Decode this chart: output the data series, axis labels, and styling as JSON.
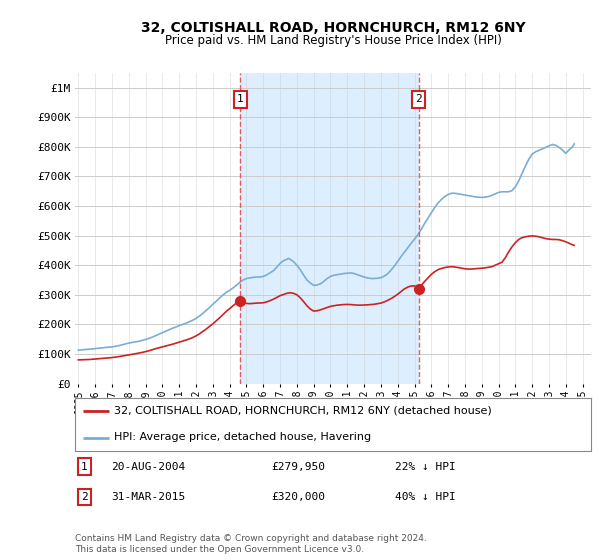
{
  "title": "32, COLTISHALL ROAD, HORNCHURCH, RM12 6NY",
  "subtitle": "Price paid vs. HM Land Registry's House Price Index (HPI)",
  "ylim": [
    0,
    1050000
  ],
  "yticks": [
    0,
    100000,
    200000,
    300000,
    400000,
    500000,
    600000,
    700000,
    800000,
    900000,
    1000000
  ],
  "ytick_labels": [
    "£0",
    "£100K",
    "£200K",
    "£300K",
    "£400K",
    "£500K",
    "£600K",
    "£700K",
    "£800K",
    "£900K",
    "£1M"
  ],
  "xlim_start": 1994.8,
  "xlim_end": 2025.5,
  "hpi_color": "#7aadd4",
  "price_color": "#cc2222",
  "vline_color": "#dd4444",
  "shade_color": "#ddeeff",
  "annotation_box_edgecolor": "#cc2222",
  "background_plot": "#ffffff",
  "grid_color": "#cccccc",
  "transaction1_x": 2004.64,
  "transaction1_y": 279950,
  "transaction1_label": "1",
  "transaction1_date": "20-AUG-2004",
  "transaction1_price": "£279,950",
  "transaction1_hpi": "22% ↓ HPI",
  "transaction2_x": 2015.25,
  "transaction2_y": 320000,
  "transaction2_label": "2",
  "transaction2_date": "31-MAR-2015",
  "transaction2_price": "£320,000",
  "transaction2_hpi": "40% ↓ HPI",
  "footnote": "Contains HM Land Registry data © Crown copyright and database right 2024.\nThis data is licensed under the Open Government Licence v3.0.",
  "legend_line1": "32, COLTISHALL ROAD, HORNCHURCH, RM12 6NY (detached house)",
  "legend_line2": "HPI: Average price, detached house, Havering",
  "hpi_data_x": [
    1995.0,
    1995.1,
    1995.2,
    1995.3,
    1995.4,
    1995.5,
    1995.6,
    1995.7,
    1995.8,
    1995.9,
    1996.0,
    1996.1,
    1996.2,
    1996.3,
    1996.4,
    1996.5,
    1996.6,
    1996.7,
    1996.8,
    1996.9,
    1997.0,
    1997.2,
    1997.4,
    1997.6,
    1997.8,
    1998.0,
    1998.2,
    1998.4,
    1998.6,
    1998.8,
    1999.0,
    1999.2,
    1999.4,
    1999.6,
    1999.8,
    2000.0,
    2000.2,
    2000.4,
    2000.6,
    2000.8,
    2001.0,
    2001.2,
    2001.4,
    2001.6,
    2001.8,
    2002.0,
    2002.2,
    2002.4,
    2002.6,
    2002.8,
    2003.0,
    2003.2,
    2003.4,
    2003.6,
    2003.8,
    2004.0,
    2004.2,
    2004.4,
    2004.6,
    2004.8,
    2005.0,
    2005.2,
    2005.4,
    2005.6,
    2005.8,
    2006.0,
    2006.2,
    2006.4,
    2006.6,
    2006.8,
    2007.0,
    2007.2,
    2007.4,
    2007.5,
    2007.6,
    2007.8,
    2008.0,
    2008.2,
    2008.4,
    2008.6,
    2008.8,
    2009.0,
    2009.2,
    2009.4,
    2009.6,
    2009.8,
    2010.0,
    2010.2,
    2010.4,
    2010.6,
    2010.8,
    2011.0,
    2011.2,
    2011.4,
    2011.6,
    2011.8,
    2012.0,
    2012.2,
    2012.4,
    2012.6,
    2012.8,
    2013.0,
    2013.2,
    2013.4,
    2013.6,
    2013.8,
    2014.0,
    2014.2,
    2014.4,
    2014.6,
    2014.8,
    2015.0,
    2015.2,
    2015.4,
    2015.6,
    2015.8,
    2016.0,
    2016.2,
    2016.4,
    2016.6,
    2016.8,
    2017.0,
    2017.2,
    2017.4,
    2017.6,
    2017.8,
    2018.0,
    2018.2,
    2018.4,
    2018.6,
    2018.8,
    2019.0,
    2019.2,
    2019.4,
    2019.6,
    2019.8,
    2020.0,
    2020.2,
    2020.4,
    2020.6,
    2020.8,
    2021.0,
    2021.2,
    2021.4,
    2021.6,
    2021.8,
    2022.0,
    2022.2,
    2022.4,
    2022.6,
    2022.8,
    2023.0,
    2023.2,
    2023.4,
    2023.6,
    2023.8,
    2024.0,
    2024.2,
    2024.4,
    2024.5
  ],
  "hpi_data_y": [
    113000,
    113500,
    114000,
    114500,
    115000,
    115500,
    116000,
    116500,
    117000,
    117500,
    118000,
    119000,
    119500,
    120000,
    120500,
    121000,
    122000,
    122500,
    123000,
    123500,
    124000,
    126000,
    128000,
    131000,
    134000,
    137000,
    139000,
    141000,
    143000,
    146000,
    149000,
    153000,
    157000,
    162000,
    167000,
    172000,
    177000,
    182000,
    187000,
    191000,
    196000,
    200000,
    204000,
    209000,
    214000,
    220000,
    228000,
    237000,
    247000,
    257000,
    268000,
    278000,
    289000,
    299000,
    308000,
    315000,
    323000,
    332000,
    342000,
    350000,
    355000,
    357000,
    359000,
    360000,
    360000,
    362000,
    367000,
    374000,
    381000,
    393000,
    406000,
    415000,
    420000,
    423000,
    420000,
    412000,
    400000,
    385000,
    367000,
    350000,
    340000,
    332000,
    333000,
    337000,
    345000,
    355000,
    362000,
    366000,
    368000,
    370000,
    372000,
    373000,
    374000,
    372000,
    368000,
    364000,
    360000,
    357000,
    355000,
    355000,
    356000,
    358000,
    363000,
    371000,
    383000,
    397000,
    413000,
    429000,
    444000,
    459000,
    474000,
    488000,
    503000,
    521000,
    541000,
    559000,
    577000,
    595000,
    610000,
    622000,
    632000,
    639000,
    643000,
    643000,
    641000,
    639000,
    637000,
    635000,
    633000,
    631000,
    630000,
    629000,
    630000,
    632000,
    636000,
    641000,
    646000,
    648000,
    648000,
    648000,
    652000,
    665000,
    685000,
    710000,
    735000,
    758000,
    775000,
    783000,
    788000,
    793000,
    798000,
    803000,
    808000,
    805000,
    798000,
    789000,
    778000,
    790000,
    800000,
    810000
  ],
  "price_data_x": [
    1995.0,
    1995.1,
    1995.2,
    1995.3,
    1995.4,
    1995.5,
    1995.6,
    1995.7,
    1995.8,
    1995.9,
    1996.0,
    1996.2,
    1996.4,
    1996.6,
    1996.8,
    1997.0,
    1997.2,
    1997.4,
    1997.6,
    1997.8,
    1998.0,
    1998.2,
    1998.4,
    1998.6,
    1998.8,
    1999.0,
    1999.2,
    1999.4,
    1999.6,
    1999.8,
    2000.0,
    2000.2,
    2000.4,
    2000.6,
    2000.8,
    2001.0,
    2001.2,
    2001.4,
    2001.6,
    2001.8,
    2002.0,
    2002.2,
    2002.4,
    2002.6,
    2002.8,
    2003.0,
    2003.2,
    2003.4,
    2003.6,
    2003.8,
    2004.0,
    2004.2,
    2004.4,
    2004.64,
    2004.8,
    2005.0,
    2005.2,
    2005.4,
    2005.6,
    2005.8,
    2006.0,
    2006.2,
    2006.4,
    2006.6,
    2006.8,
    2007.0,
    2007.2,
    2007.4,
    2007.6,
    2007.8,
    2008.0,
    2008.2,
    2008.4,
    2008.6,
    2008.8,
    2009.0,
    2009.2,
    2009.4,
    2009.6,
    2009.8,
    2010.0,
    2010.2,
    2010.4,
    2010.6,
    2010.8,
    2011.0,
    2011.2,
    2011.4,
    2011.6,
    2011.8,
    2012.0,
    2012.2,
    2012.4,
    2012.6,
    2012.8,
    2013.0,
    2013.2,
    2013.4,
    2013.6,
    2013.8,
    2014.0,
    2014.2,
    2014.4,
    2014.6,
    2014.8,
    2015.0,
    2015.25,
    2015.4,
    2015.6,
    2015.8,
    2016.0,
    2016.2,
    2016.4,
    2016.6,
    2016.8,
    2017.0,
    2017.2,
    2017.4,
    2017.6,
    2017.8,
    2018.0,
    2018.2,
    2018.4,
    2018.6,
    2018.8,
    2019.0,
    2019.2,
    2019.4,
    2019.6,
    2019.8,
    2020.0,
    2020.2,
    2020.4,
    2020.6,
    2020.8,
    2021.0,
    2021.2,
    2021.4,
    2021.6,
    2021.8,
    2022.0,
    2022.2,
    2022.4,
    2022.6,
    2022.8,
    2023.0,
    2023.2,
    2023.4,
    2023.6,
    2023.8,
    2024.0,
    2024.2,
    2024.4,
    2024.5
  ],
  "price_data_y": [
    80000,
    80200,
    80400,
    80600,
    80800,
    81000,
    81300,
    81600,
    82000,
    82400,
    83000,
    84000,
    85000,
    86000,
    87000,
    88000,
    89500,
    91000,
    93000,
    95000,
    97000,
    99000,
    101000,
    103000,
    105500,
    108000,
    111000,
    114500,
    118000,
    121000,
    124000,
    127000,
    130000,
    133000,
    136500,
    140000,
    143500,
    147000,
    151000,
    155500,
    161000,
    168000,
    176000,
    184000,
    193000,
    202000,
    212000,
    222000,
    233000,
    244000,
    253000,
    263000,
    272000,
    279950,
    276000,
    271000,
    270000,
    271000,
    272000,
    272500,
    273000,
    276000,
    280000,
    285000,
    291000,
    297000,
    301000,
    305000,
    307000,
    305000,
    300000,
    290000,
    277000,
    263000,
    252000,
    245000,
    246000,
    249000,
    253000,
    257000,
    261000,
    263000,
    265000,
    266000,
    267000,
    267500,
    267000,
    266000,
    265000,
    265000,
    265500,
    266000,
    267000,
    268000,
    270000,
    272000,
    276000,
    281000,
    287000,
    294000,
    302000,
    311000,
    320000,
    326000,
    330000,
    330000,
    320000,
    332000,
    345000,
    357000,
    369000,
    378000,
    385000,
    389000,
    392000,
    394000,
    395000,
    394000,
    392000,
    390000,
    388000,
    387000,
    387000,
    388000,
    389000,
    390000,
    391000,
    393000,
    395000,
    400000,
    405000,
    410000,
    425000,
    445000,
    462000,
    476000,
    487000,
    493000,
    496000,
    498000,
    499000,
    498000,
    496000,
    493000,
    490000,
    488000,
    487000,
    487000,
    486000,
    483000,
    479000,
    474000,
    469000,
    467000
  ]
}
